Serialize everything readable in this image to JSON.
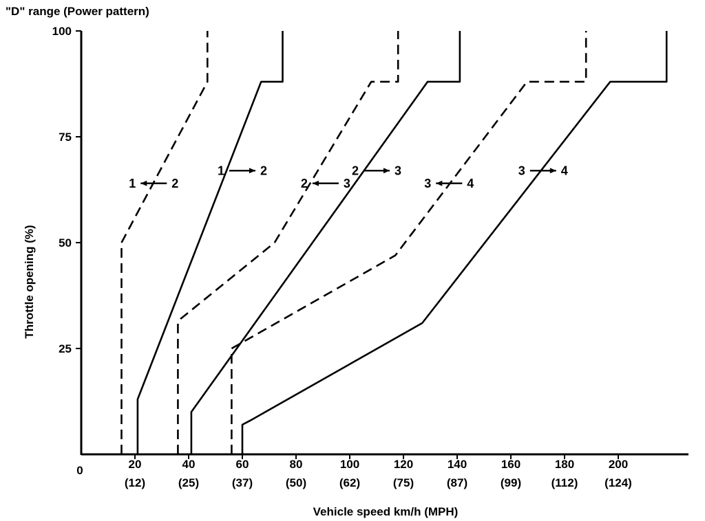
{
  "chart_data": {
    "type": "line",
    "title": "\"D\" range (Power pattern)",
    "xlabel": "Vehicle speed km/h (MPH)",
    "ylabel": "Throttle opening (%)",
    "xlim": [
      0,
      225
    ],
    "ylim": [
      0,
      100
    ],
    "origin_label": "0",
    "x_ticks": [
      {
        "value": 20,
        "label": "20",
        "sublabel": "(12)"
      },
      {
        "value": 40,
        "label": "40",
        "sublabel": "(25)"
      },
      {
        "value": 60,
        "label": "60",
        "sublabel": "(37)"
      },
      {
        "value": 80,
        "label": "80",
        "sublabel": "(50)"
      },
      {
        "value": 100,
        "label": "100",
        "sublabel": "(62)"
      },
      {
        "value": 120,
        "label": "120",
        "sublabel": "(75)"
      },
      {
        "value": 140,
        "label": "140",
        "sublabel": "(87)"
      },
      {
        "value": 160,
        "label": "160",
        "sublabel": "(99)"
      },
      {
        "value": 180,
        "label": "180",
        "sublabel": "(112)"
      },
      {
        "value": 200,
        "label": "200",
        "sublabel": "(124)"
      }
    ],
    "y_ticks": [
      {
        "value": 25,
        "label": "25"
      },
      {
        "value": 50,
        "label": "50"
      },
      {
        "value": 75,
        "label": "75"
      },
      {
        "value": 100,
        "label": "100"
      }
    ],
    "grid": false,
    "series": [
      {
        "style": "dashed",
        "points": [
          [
            15,
            0
          ],
          [
            15,
            50
          ],
          [
            47,
            88
          ],
          [
            47,
            100
          ]
        ]
      },
      {
        "style": "solid",
        "points": [
          [
            21,
            0
          ],
          [
            21,
            13
          ],
          [
            67,
            88
          ],
          [
            75,
            88
          ],
          [
            75,
            100
          ]
        ]
      },
      {
        "style": "dashed",
        "points": [
          [
            36,
            0
          ],
          [
            36,
            31
          ],
          [
            37,
            32
          ],
          [
            72,
            50
          ],
          [
            108,
            88
          ],
          [
            118,
            88
          ],
          [
            118,
            100
          ]
        ]
      },
      {
        "style": "solid",
        "points": [
          [
            41,
            0
          ],
          [
            41,
            10
          ],
          [
            129,
            88
          ],
          [
            141,
            88
          ],
          [
            141,
            100
          ]
        ]
      },
      {
        "style": "dashed",
        "points": [
          [
            56,
            0
          ],
          [
            56,
            25
          ],
          [
            117,
            47
          ],
          [
            166,
            88
          ],
          [
            188,
            88
          ],
          [
            188,
            100
          ]
        ]
      },
      {
        "style": "solid",
        "points": [
          [
            60,
            0
          ],
          [
            60,
            7
          ],
          [
            63,
            8
          ],
          [
            127,
            31
          ],
          [
            197,
            88
          ],
          [
            218,
            88
          ],
          [
            218,
            100
          ]
        ]
      }
    ],
    "annotations": [
      {
        "text_from": "1",
        "text_to": "2",
        "direction": "left",
        "x": 27,
        "y": 64
      },
      {
        "text_from": "1",
        "text_to": "2",
        "direction": "right",
        "x": 60,
        "y": 67
      },
      {
        "text_from": "2",
        "text_to": "3",
        "direction": "left",
        "x": 91,
        "y": 64
      },
      {
        "text_from": "2",
        "text_to": "3",
        "direction": "right",
        "x": 110,
        "y": 67
      },
      {
        "text_from": "3",
        "text_to": "4",
        "direction": "left",
        "x": 137,
        "y": 64
      },
      {
        "text_from": "3",
        "text_to": "4",
        "direction": "right",
        "x": 172,
        "y": 67
      }
    ]
  }
}
